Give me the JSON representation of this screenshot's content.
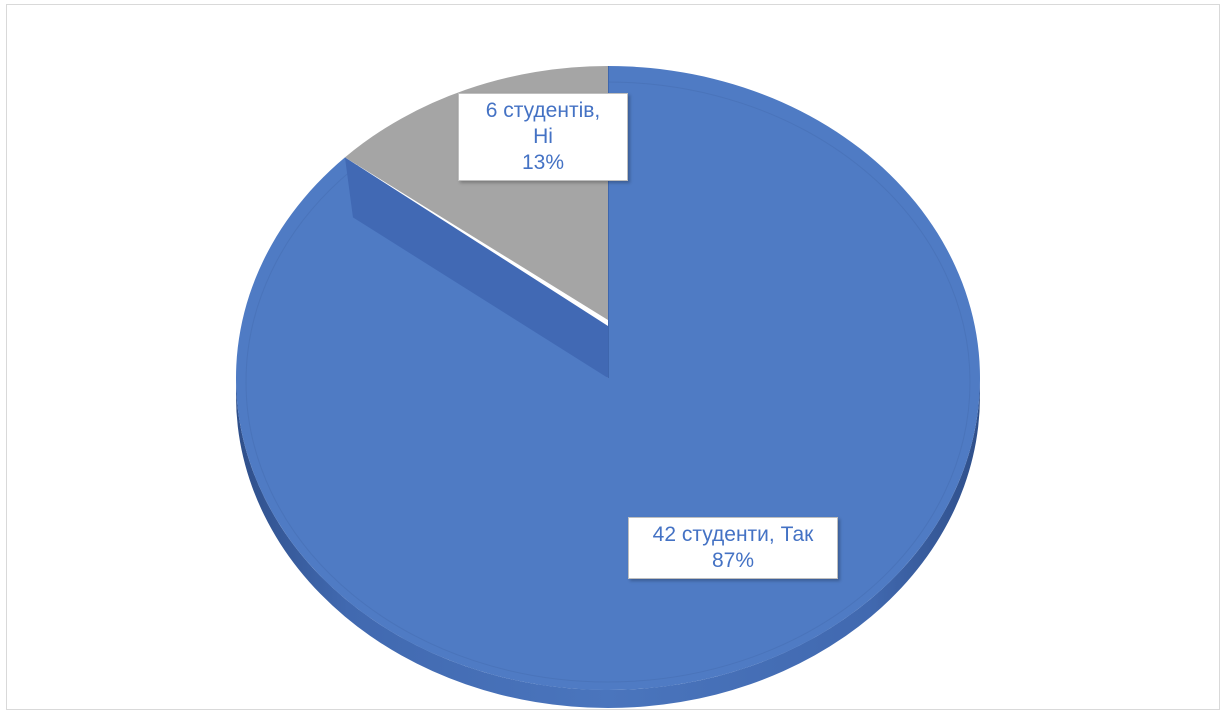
{
  "chart_data": {
    "type": "pie",
    "title": "",
    "style": "3d",
    "categories": [
      "Так",
      "Ні"
    ],
    "values": [
      42,
      6
    ],
    "percents": [
      87,
      13
    ],
    "colors": {
      "yes_top": "#4f7bc4",
      "yes_side": "#3f65a8",
      "no_top": "#a5a5a5",
      "label_text": "#4472c4"
    },
    "labels": [
      {
        "line1": "42 студенти, Так",
        "line2": "87%"
      },
      {
        "line1": "6 студентів,",
        "line2": "Ні",
        "line3": "13%"
      }
    ]
  }
}
